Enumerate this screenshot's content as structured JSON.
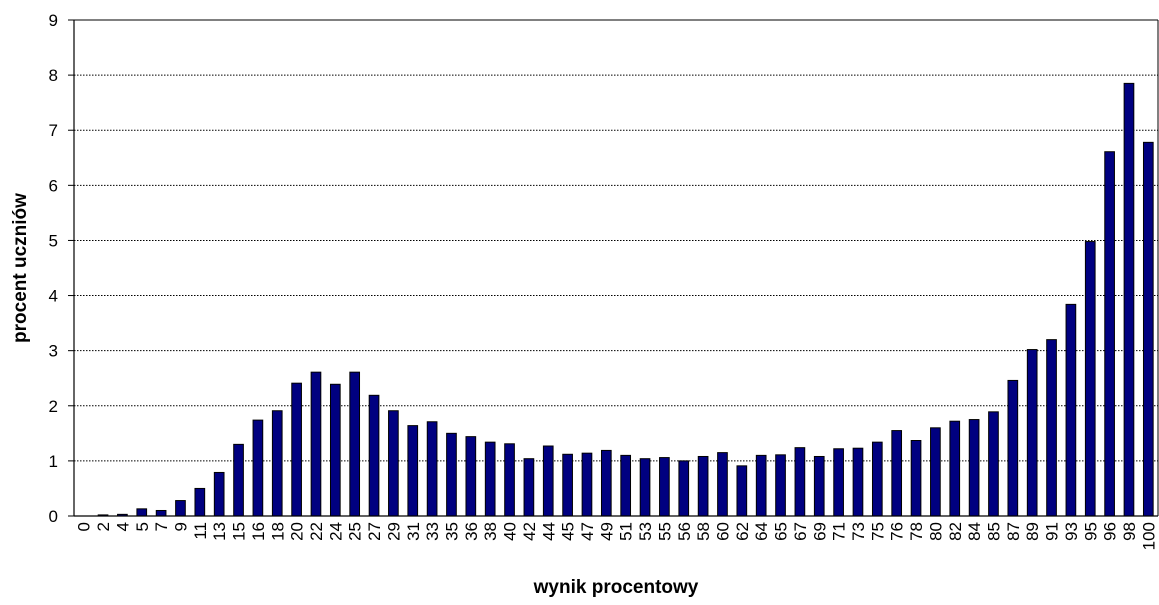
{
  "chart_data": {
    "type": "bar",
    "title": "",
    "xlabel": "wynik procentowy",
    "ylabel": "procent uczniów",
    "ylim": [
      0,
      9
    ],
    "yticks": [
      "0",
      "1",
      "2",
      "3",
      "4",
      "5",
      "6",
      "7",
      "8",
      "9"
    ],
    "grid": true,
    "legend": "none",
    "bar_color": "#000080",
    "bar_edge_color": "#000000",
    "grid_color": "#000000",
    "categories": [
      "0",
      "2",
      "4",
      "5",
      "7",
      "9",
      "11",
      "13",
      "15",
      "16",
      "18",
      "20",
      "22",
      "24",
      "25",
      "27",
      "29",
      "31",
      "33",
      "35",
      "36",
      "38",
      "40",
      "42",
      "44",
      "45",
      "47",
      "49",
      "51",
      "53",
      "55",
      "56",
      "58",
      "60",
      "62",
      "64",
      "65",
      "67",
      "69",
      "71",
      "73",
      "75",
      "76",
      "78",
      "80",
      "82",
      "84",
      "85",
      "87",
      "89",
      "91",
      "93",
      "95",
      "96",
      "98",
      "100"
    ],
    "values": [
      0,
      0.02,
      0.03,
      0.13,
      0.1,
      0.28,
      0.5,
      0.79,
      1.3,
      1.74,
      1.91,
      2.41,
      2.61,
      2.39,
      2.61,
      2.19,
      1.91,
      1.64,
      1.71,
      1.5,
      1.44,
      1.34,
      1.31,
      1.04,
      1.27,
      1.12,
      1.14,
      1.19,
      1.1,
      1.04,
      1.06,
      1.0,
      1.08,
      1.15,
      0.91,
      1.1,
      1.11,
      1.24,
      1.08,
      1.22,
      1.23,
      1.34,
      1.55,
      1.37,
      1.6,
      1.72,
      1.75,
      1.89,
      2.46,
      3.02,
      3.2,
      3.84,
      4.98,
      6.61,
      7.85,
      6.78
    ]
  }
}
